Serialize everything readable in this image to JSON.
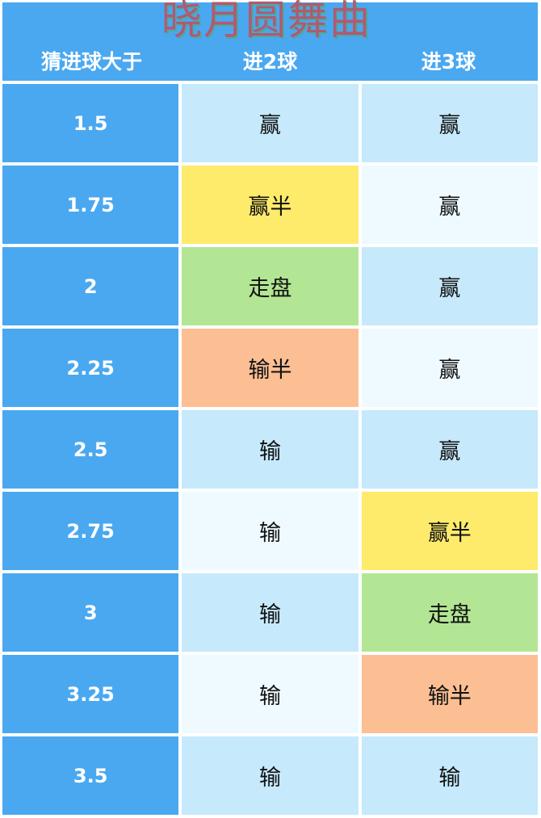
{
  "watermark": "晓月圆舞曲",
  "colors": {
    "header": "#4aa8f0",
    "stripe_dark": "#c6e9fb",
    "stripe_light": "#eefaff",
    "win_half": "#ffeb6b",
    "push": "#b3e694",
    "lose_half": "#fcbf94"
  },
  "headers": [
    "猜进球大于",
    "进2球",
    "进3球"
  ],
  "rows": [
    {
      "line": "1.5",
      "goals2": "赢",
      "goals3": "赢"
    },
    {
      "line": "1.75",
      "goals2": "赢半",
      "goals3": "赢"
    },
    {
      "line": "2",
      "goals2": "走盘",
      "goals3": "赢"
    },
    {
      "line": "2.25",
      "goals2": "输半",
      "goals3": "赢"
    },
    {
      "line": "2.5",
      "goals2": "输",
      "goals3": "赢"
    },
    {
      "line": "2.75",
      "goals2": "输",
      "goals3": "赢半"
    },
    {
      "line": "3",
      "goals2": "输",
      "goals3": "走盘"
    },
    {
      "line": "3.25",
      "goals2": "输",
      "goals3": "输半"
    },
    {
      "line": "3.5",
      "goals2": "输",
      "goals3": "输"
    }
  ]
}
